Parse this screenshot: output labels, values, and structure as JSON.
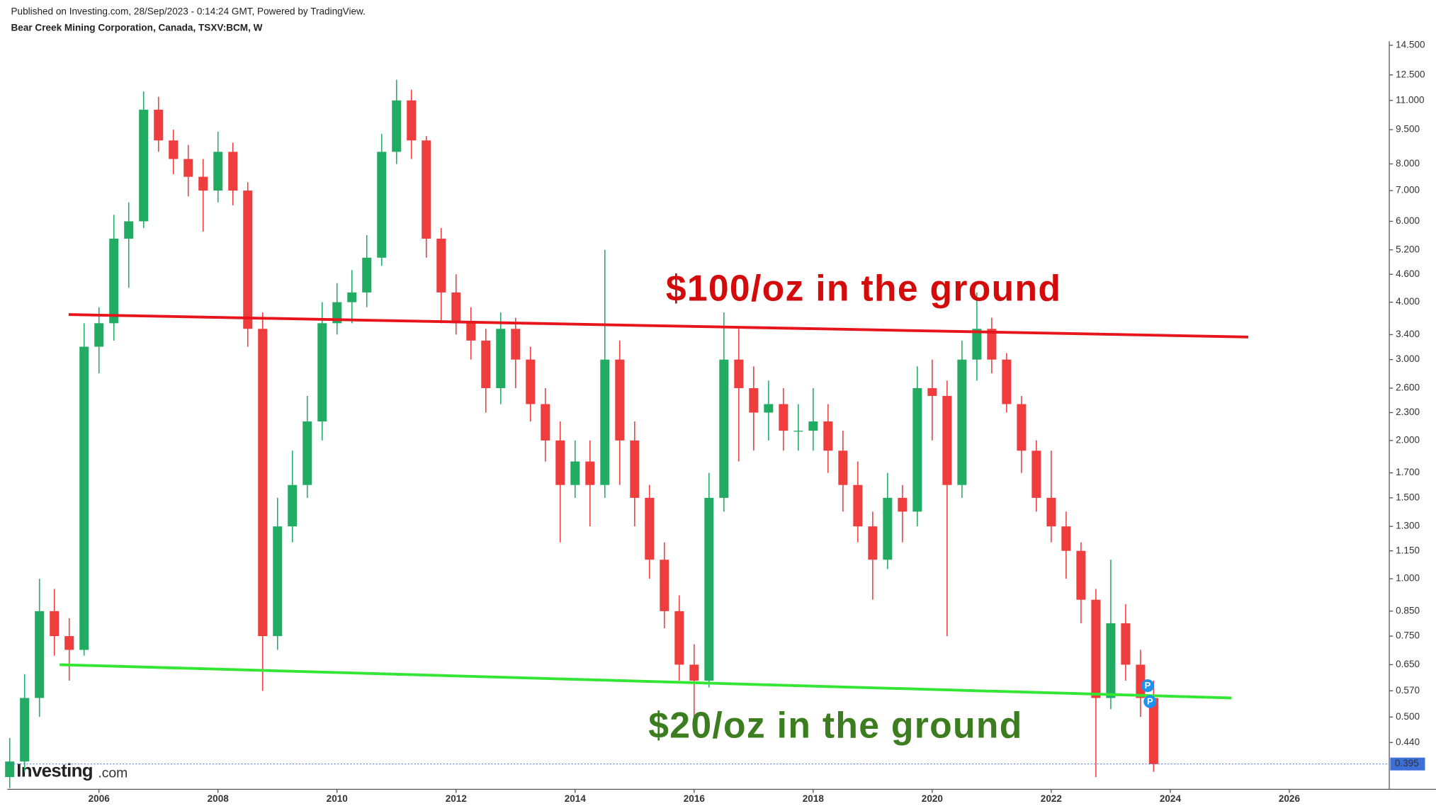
{
  "chart_data": {
    "type": "candlestick",
    "published": "Published on Investing.com, 28/Sep/2023 - 0:14:24 GMT, Powered by TradingView.",
    "title": "Bear Creek Mining Corporation, Canada, TSXV:BCM, W",
    "watermark": {
      "brand": "Investing",
      "suffix": ".com"
    },
    "log_scale": true,
    "up_color": "#22ab63",
    "down_color": "#ef3d3d",
    "xlim": [
      2004.46,
      2027.68
    ],
    "xticks": [
      2006,
      2008,
      2010,
      2012,
      2014,
      2016,
      2018,
      2020,
      2022,
      2024,
      2026
    ],
    "ylim": [
      0.348,
      14.8
    ],
    "yticks": [
      {
        "value": 14.5,
        "label": "14.500"
      },
      {
        "value": 12.5,
        "label": "12.500"
      },
      {
        "value": 11,
        "label": "11.000"
      },
      {
        "value": 9.5,
        "label": "9.500"
      },
      {
        "value": 8,
        "label": "8.000"
      },
      {
        "value": 7,
        "label": "7.000"
      },
      {
        "value": 6,
        "label": "6.000"
      },
      {
        "value": 5.2,
        "label": "5.200"
      },
      {
        "value": 4.6,
        "label": "4.600"
      },
      {
        "value": 4,
        "label": "4.000"
      },
      {
        "value": 3.4,
        "label": "3.400"
      },
      {
        "value": 3,
        "label": "3.000"
      },
      {
        "value": 2.6,
        "label": "2.600"
      },
      {
        "value": 2.3,
        "label": "2.300"
      },
      {
        "value": 2,
        "label": "2.000"
      },
      {
        "value": 1.7,
        "label": "1.700"
      },
      {
        "value": 1.5,
        "label": "1.500"
      },
      {
        "value": 1.3,
        "label": "1.300"
      },
      {
        "value": 1.15,
        "label": "1.150"
      },
      {
        "value": 1,
        "label": "1.000"
      },
      {
        "value": 0.85,
        "label": "0.850"
      },
      {
        "value": 0.75,
        "label": "0.750"
      },
      {
        "value": 0.65,
        "label": "0.650"
      },
      {
        "value": 0.57,
        "label": "0.570"
      },
      {
        "value": 0.5,
        "label": "0.500"
      },
      {
        "value": 0.44,
        "label": "0.440"
      }
    ],
    "last_price": 0.395,
    "last_price_color": "#3d6fd8",
    "x": [
      2004.5,
      2004.75,
      2005,
      2005.25,
      2005.5,
      2005.75,
      2006,
      2006.25,
      2006.5,
      2006.75,
      2007,
      2007.25,
      2007.5,
      2007.75,
      2008,
      2008.25,
      2008.5,
      2008.75,
      2009,
      2009.25,
      2009.5,
      2009.75,
      2010,
      2010.25,
      2010.5,
      2010.75,
      2011,
      2011.25,
      2011.5,
      2011.75,
      2012,
      2012.25,
      2012.5,
      2012.75,
      2013,
      2013.25,
      2013.5,
      2013.75,
      2014,
      2014.25,
      2014.5,
      2014.75,
      2015,
      2015.25,
      2015.5,
      2015.75,
      2016,
      2016.25,
      2016.5,
      2016.75,
      2017,
      2017.25,
      2017.5,
      2017.75,
      2018,
      2018.25,
      2018.5,
      2018.75,
      2019,
      2019.25,
      2019.5,
      2019.75,
      2020,
      2020.25,
      2020.5,
      2020.75,
      2021,
      2021.25,
      2021.5,
      2021.75,
      2022,
      2022.25,
      2022.5,
      2022.75,
      2023,
      2023.25,
      2023.5,
      2023.72
    ],
    "open": [
      0.37,
      0.4,
      0.55,
      0.85,
      0.75,
      0.7,
      3.2,
      3.6,
      5.5,
      6,
      10.5,
      9,
      8.2,
      7.5,
      7,
      8.5,
      7,
      3.5,
      0.75,
      1.3,
      1.6,
      2.2,
      3.6,
      4,
      4.2,
      5,
      8.5,
      11,
      9,
      5.5,
      4.2,
      3.6,
      3.3,
      2.6,
      3.5,
      3,
      2.4,
      2,
      1.6,
      1.8,
      1.6,
      3,
      2,
      1.5,
      1.1,
      0.85,
      0.65,
      0.6,
      1.5,
      3,
      2.6,
      2.3,
      2.4,
      2.1,
      2.1,
      2.2,
      1.9,
      1.6,
      1.3,
      1.1,
      1.5,
      1.4,
      2.6,
      2.5,
      1.6,
      3,
      3.5,
      3,
      2.4,
      1.9,
      1.5,
      1.3,
      1.15,
      0.9,
      0.55,
      0.8,
      0.65,
      0.55
    ],
    "high": [
      0.45,
      0.62,
      1,
      0.95,
      0.82,
      3.6,
      3.9,
      6.2,
      6.6,
      11.5,
      11.2,
      9.5,
      8.8,
      8.2,
      9.4,
      8.9,
      7.3,
      3.8,
      1.5,
      1.9,
      2.5,
      4,
      4.4,
      4.7,
      5.6,
      9.3,
      12.2,
      11.6,
      9.2,
      5.8,
      4.6,
      3.9,
      3.5,
      3.8,
      3.7,
      3.2,
      2.6,
      2.2,
      2,
      2,
      5.2,
      3.3,
      2.2,
      1.6,
      1.2,
      0.92,
      0.72,
      1.7,
      3.8,
      3.5,
      2.9,
      2.7,
      2.6,
      2.4,
      2.6,
      2.4,
      2.1,
      1.8,
      1.4,
      1.7,
      1.6,
      2.9,
      3,
      2.7,
      3.3,
      4.2,
      3.7,
      3.1,
      2.5,
      2,
      1.9,
      1.4,
      1.2,
      0.95,
      1.1,
      0.88,
      0.7,
      0.6
    ],
    "low": [
      0.35,
      0.38,
      0.5,
      0.68,
      0.6,
      0.68,
      2.8,
      3.3,
      4.3,
      5.8,
      8.5,
      7.6,
      6.8,
      5.7,
      6.6,
      6.5,
      3.2,
      0.57,
      0.7,
      1.2,
      1.5,
      2,
      3.4,
      3.6,
      3.9,
      4.8,
      8,
      8.2,
      5,
      3.6,
      3.4,
      3,
      2.3,
      2.4,
      2.6,
      2.2,
      1.8,
      1.2,
      1.5,
      1.3,
      1.5,
      1.6,
      1.3,
      1,
      0.78,
      0.6,
      0.5,
      0.58,
      1.4,
      1.8,
      1.9,
      2,
      1.9,
      1.9,
      1.9,
      1.7,
      1.4,
      1.2,
      0.9,
      1.05,
      1.2,
      1.3,
      2,
      0.75,
      1.5,
      2.7,
      2.8,
      2.3,
      1.7,
      1.4,
      1.2,
      1,
      0.8,
      0.37,
      0.52,
      0.6,
      0.5,
      0.38
    ],
    "close": [
      0.4,
      0.55,
      0.85,
      0.75,
      0.7,
      3.2,
      3.6,
      5.5,
      6,
      10.5,
      9,
      8.2,
      7.5,
      7,
      8.5,
      7,
      3.5,
      0.75,
      1.3,
      1.6,
      2.2,
      3.6,
      4,
      4.2,
      5,
      8.5,
      11,
      9,
      5.5,
      4.2,
      3.6,
      3.3,
      2.6,
      3.5,
      3,
      2.4,
      2,
      1.6,
      1.8,
      1.6,
      3,
      2,
      1.5,
      1.1,
      0.85,
      0.65,
      0.6,
      1.5,
      3,
      2.6,
      2.3,
      2.4,
      2.1,
      2.1,
      2.2,
      1.9,
      1.6,
      1.3,
      1.1,
      1.5,
      1.4,
      2.6,
      2.5,
      1.6,
      3,
      3.5,
      3,
      2.4,
      1.9,
      1.5,
      1.3,
      1.15,
      0.9,
      0.55,
      0.8,
      0.65,
      0.55,
      0.395
    ],
    "trend_lines": [
      {
        "x": [
          2005.49,
          2025.31
        ],
        "y": [
          3.76,
          3.36
        ],
        "color": "#e8141b"
      },
      {
        "x": [
          2005.34,
          2025.03
        ],
        "y": [
          0.65,
          0.55
        ],
        "color": "#33e633"
      }
    ],
    "annotations": [
      {
        "text": "$100/oz in the ground",
        "color": "#d40b0b"
      },
      {
        "text": "$20/oz in the ground",
        "color": "#3b7d1f"
      }
    ],
    "markers": [
      {
        "x": 2023.62,
        "y": 0.585,
        "label": "P"
      },
      {
        "x": 2023.66,
        "y": 0.54,
        "label": "P"
      }
    ]
  }
}
